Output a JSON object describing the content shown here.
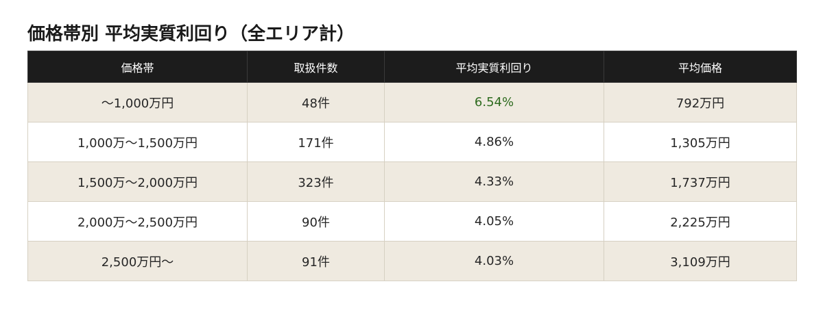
{
  "title": "価格帯別 平均実質利回り（全エリア計）",
  "colors": {
    "header_bg": "#1c1c1c",
    "header_text": "#ffffff",
    "row_shaded": "#efeae0",
    "row_plain": "#ffffff",
    "highlight": "#2e6b1f"
  },
  "table": {
    "headers": [
      "価格帯",
      "取扱件数",
      "平均実質利回り",
      "平均価格"
    ],
    "rows": [
      [
        "〜1,000万円",
        "48件",
        "6.54%",
        "792万円"
      ],
      [
        "1,000万〜1,500万円",
        "171件",
        "4.86%",
        "1,305万円"
      ],
      [
        "1,500万〜2,000万円",
        "323件",
        "4.33%",
        "1,737万円"
      ],
      [
        "2,000万〜2,500万円",
        "90件",
        "4.05%",
        "2,225万円"
      ],
      [
        "2,500万円〜",
        "91件",
        "4.03%",
        "3,109万円"
      ]
    ]
  },
  "chart_data": {
    "type": "table",
    "title": "価格帯別 平均実質利回り（全エリア計）",
    "columns": [
      "価格帯",
      "取扱件数",
      "平均実質利回り",
      "平均価格"
    ],
    "rows": [
      [
        "〜1,000万円",
        "48件",
        "6.54%",
        "792万円"
      ],
      [
        "1,000万〜1,500万円",
        "171件",
        "4.86%",
        "1,305万円"
      ],
      [
        "1,500万〜2,000万円",
        "323件",
        "4.33%",
        "1,737万円"
      ],
      [
        "2,000万〜2,500万円",
        "90件",
        "4.05%",
        "2,225万円"
      ],
      [
        "2,500万円〜",
        "91件",
        "4.03%",
        "3,109万円"
      ]
    ]
  }
}
